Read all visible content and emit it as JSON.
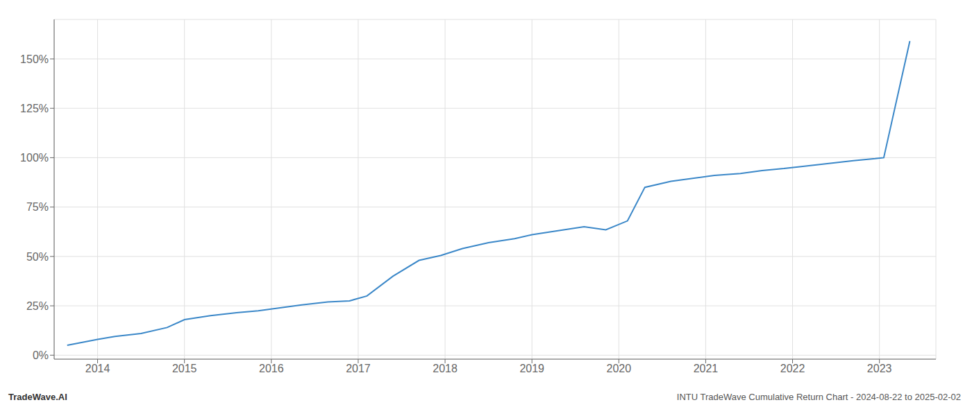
{
  "chart_data": {
    "type": "line",
    "annotations": [
      "TradeWave.AI",
      "INTU TradeWave Cumulative Return Chart - 2024-08-22 to 2025-02-02"
    ],
    "x": [
      2013.65,
      2014.0,
      2014.2,
      2014.5,
      2014.8,
      2015.0,
      2015.3,
      2015.6,
      2015.85,
      2016.1,
      2016.35,
      2016.65,
      2016.9,
      2017.1,
      2017.4,
      2017.7,
      2017.95,
      2018.2,
      2018.5,
      2018.8,
      2019.0,
      2019.3,
      2019.6,
      2019.85,
      2020.1,
      2020.3,
      2020.6,
      2020.85,
      2021.1,
      2021.4,
      2021.65,
      2021.9,
      2022.1,
      2022.4,
      2022.7,
      2022.95,
      2023.05,
      2023.35
    ],
    "values": [
      5.0,
      8.0,
      9.5,
      11.0,
      14.0,
      18.0,
      20.0,
      21.5,
      22.5,
      24.0,
      25.5,
      27.0,
      27.5,
      30.0,
      40.0,
      48.0,
      50.5,
      54.0,
      57.0,
      59.0,
      61.0,
      63.0,
      65.0,
      63.5,
      68.0,
      85.0,
      88.0,
      89.5,
      91.0,
      92.0,
      93.5,
      94.5,
      95.5,
      97.0,
      98.5,
      99.5,
      100.0,
      159.0
    ],
    "color": "#3a87c8",
    "xlim": [
      2013.5,
      2023.65
    ],
    "xticks": [
      2014,
      2015,
      2016,
      2017,
      2018,
      2019,
      2020,
      2021,
      2022,
      2023
    ],
    "ylim": [
      -2,
      170
    ],
    "yticks": [
      {
        "value": 0,
        "label": "0%"
      },
      {
        "value": 25,
        "label": "25%"
      },
      {
        "value": 50,
        "label": "50%"
      },
      {
        "value": 75,
        "label": "75%"
      },
      {
        "value": 100,
        "label": "100%"
      },
      {
        "value": 125,
        "label": "125%"
      },
      {
        "value": 150,
        "label": "150%"
      }
    ],
    "grid": true
  }
}
